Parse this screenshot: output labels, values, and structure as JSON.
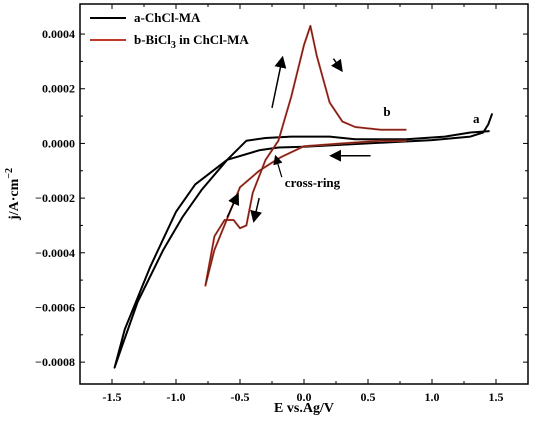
{
  "chart_data": {
    "type": "line",
    "xlabel": "E vs.Ag/V",
    "ylabel_main": "j/A·cm",
    "ylabel_sup": "−2",
    "xlim": [
      -1.75,
      1.75
    ],
    "ylim": [
      -0.00088,
      0.00051
    ],
    "x_ticks": [
      -1.5,
      -1.0,
      -0.5,
      0.0,
      0.5,
      1.0,
      1.5
    ],
    "x_tick_labels": [
      "-1.5",
      "-1.0",
      "-0.5",
      "0.0",
      "0.5",
      "1.0",
      "1.5"
    ],
    "y_ticks": [
      0.0004,
      0.0002,
      0.0,
      -0.0002,
      -0.0004,
      -0.0006,
      -0.0008
    ],
    "y_tick_labels": [
      "0.0004",
      "0.0002",
      "0.0000",
      "−0.0002",
      "−0.0004",
      "−0.0006",
      "−0.0008"
    ],
    "grid": false,
    "legend_position": "top-left",
    "series": [
      {
        "name": "a-ChCl-MA",
        "label": "a",
        "color": "#000000",
        "points": [
          [
            1.47,
            0.00011
          ],
          [
            1.44,
            7e-05
          ],
          [
            1.4,
            4e-05
          ],
          [
            1.3,
            2.5e-05
          ],
          [
            1.0,
            1.2e-05
          ],
          [
            0.5,
            0.0
          ],
          [
            0.0,
            -1.2e-05
          ],
          [
            -0.2,
            -1.5e-05
          ],
          [
            -0.35,
            -2.5e-05
          ],
          [
            -0.6,
            -6e-05
          ],
          [
            -0.85,
            -0.00015
          ],
          [
            -1.0,
            -0.00025
          ],
          [
            -1.2,
            -0.00045
          ],
          [
            -1.4,
            -0.00068
          ],
          [
            -1.48,
            -0.00082
          ],
          [
            -1.42,
            -0.00074
          ],
          [
            -1.3,
            -0.00058
          ],
          [
            -1.1,
            -0.00039
          ],
          [
            -0.95,
            -0.00027
          ],
          [
            -0.8,
            -0.00017
          ],
          [
            -0.6,
            -6e-05
          ],
          [
            -0.45,
            1e-05
          ],
          [
            -0.3,
            2e-05
          ],
          [
            -0.1,
            2.5e-05
          ],
          [
            0.2,
            2.5e-05
          ],
          [
            0.4,
            1.5e-05
          ],
          [
            0.8,
            1.5e-05
          ],
          [
            1.1,
            2.5e-05
          ],
          [
            1.3,
            4e-05
          ],
          [
            1.45,
            4.5e-05
          ]
        ]
      },
      {
        "name": "b-BiCl3 in ChCl-MA",
        "label": "b",
        "color": "#c0392b",
        "points": [
          [
            0.8,
            5e-05
          ],
          [
            0.75,
            5e-05
          ],
          [
            0.6,
            5e-05
          ],
          [
            0.4,
            6e-05
          ],
          [
            0.3,
            8e-05
          ],
          [
            0.2,
            0.00015
          ],
          [
            0.1,
            0.00032
          ],
          [
            0.05,
            0.00043
          ],
          [
            0.0,
            0.00036
          ],
          [
            -0.1,
            0.00017
          ],
          [
            -0.2,
            1e-05
          ],
          [
            -0.3,
            -6e-05
          ],
          [
            -0.4,
            -0.00018
          ],
          [
            -0.45,
            -0.0003
          ],
          [
            -0.5,
            -0.00031
          ],
          [
            -0.55,
            -0.00028
          ],
          [
            -0.62,
            -0.00028
          ],
          [
            -0.7,
            -0.00034
          ],
          [
            -0.77,
            -0.00052
          ],
          [
            -0.7,
            -0.00039
          ],
          [
            -0.5,
            -0.00016
          ],
          [
            -0.35,
            -0.0001
          ],
          [
            -0.25,
            -7e-05
          ],
          [
            -0.18,
            -5e-05
          ],
          [
            0.0,
            -1e-05
          ],
          [
            0.3,
            0.0
          ],
          [
            0.6,
            1e-05
          ],
          [
            0.8,
            1e-05
          ]
        ]
      }
    ],
    "annotations": [
      {
        "text": "cross-ring",
        "x": -0.15,
        "y": -0.00016,
        "arrow_to": [
          -0.22,
          -5e-05
        ]
      }
    ],
    "arrows": [
      {
        "from": [
          0.52,
          -4.5e-05
        ],
        "to": [
          0.22,
          -4.5e-05
        ],
        "label": "scan direction"
      },
      {
        "from": [
          -0.25,
          0.00013
        ],
        "to": [
          -0.17,
          0.00031
        ],
        "label": "up-left"
      },
      {
        "from": [
          0.23,
          0.00031
        ],
        "to": [
          0.29,
          0.00027
        ],
        "label": "down-right-top"
      },
      {
        "from": [
          -0.6,
          -0.00027
        ],
        "to": [
          -0.52,
          -0.00019
        ],
        "label": "up-left-lower"
      },
      {
        "from": [
          -0.35,
          -0.0002
        ],
        "to": [
          -0.39,
          -0.00028
        ],
        "label": "down-mid"
      }
    ]
  },
  "legend": {
    "a_label": "a-ChCl-MA",
    "b_label_pre": "b-BiCl",
    "b_label_sub": "3",
    "b_label_post": " in ChCl-MA"
  }
}
